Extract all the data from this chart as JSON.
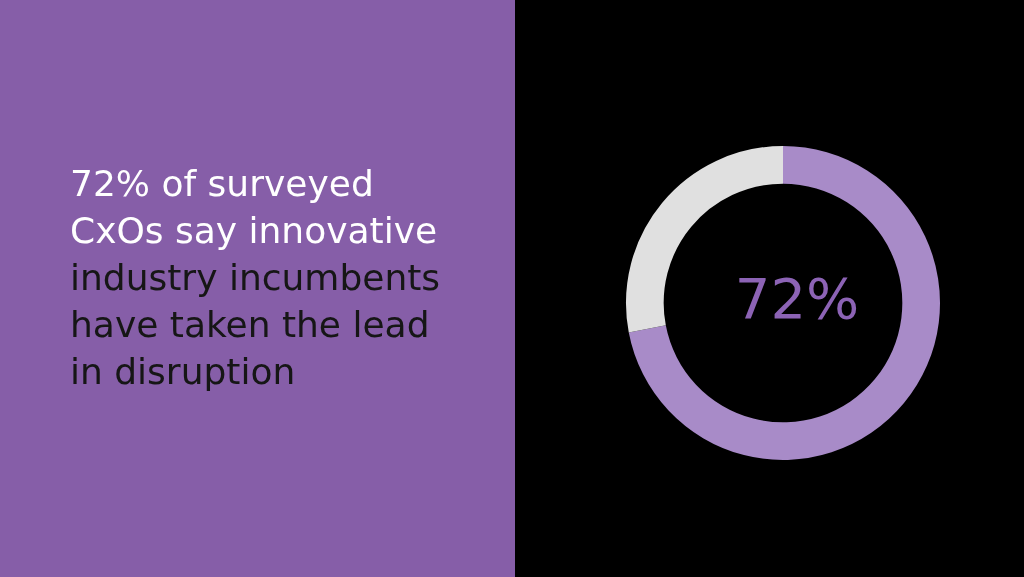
{
  "chart_data": {
    "type": "donut",
    "title": "72% of surveyed CxOs say innovative",
    "subtitle": "industry incumbents have taken the lead in disruption",
    "categories": [
      null,
      null
    ],
    "values": [
      72,
      28
    ],
    "colors": [
      "#a88bc8",
      "#e0e0e0"
    ],
    "value_labels": [
      "72%",
      null
    ],
    "legend": false
  }
}
